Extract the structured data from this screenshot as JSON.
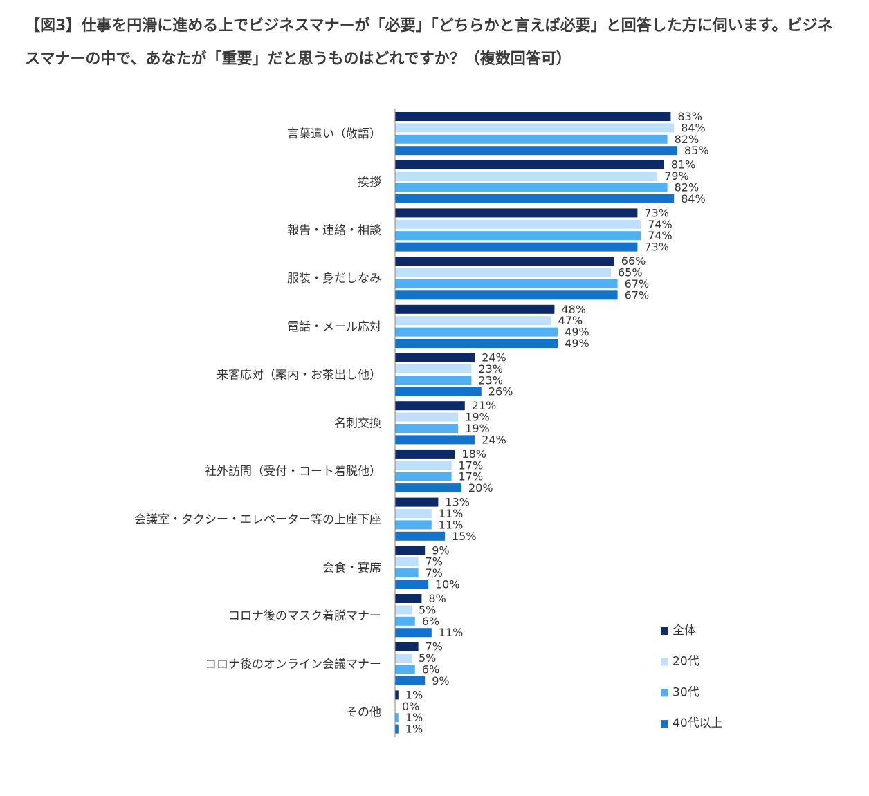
{
  "title": "【図3】仕事を円滑に進める上でビジネスマナーが「必要」「どちらかと言えば必要」と回答した方に伺います。ビジネスマナーの中で、あなたが「重要」だと思うものはどれですか？（複数回答可）",
  "chart_data": {
    "type": "bar",
    "orientation": "horizontal",
    "unit": "%",
    "xlim": [
      0,
      100
    ],
    "legend_position": "bottom-right",
    "categories": [
      "言葉遣い（敬語）",
      "挨拶",
      "報告・連絡・相談",
      "服装・身だしなみ",
      "電話・メール応対",
      "来客応対（案内・お茶出し他）",
      "名刺交換",
      "社外訪問（受付・コート着脱他）",
      "会議室・タクシー・エレベーター等の上座下座",
      "会食・宴席",
      "コロナ後のマスク着脱マナー",
      "コロナ後のオンライン会議マナー",
      "その他"
    ],
    "series": [
      {
        "name": "全体",
        "color": "#0d2a66",
        "values": [
          83,
          81,
          73,
          66,
          48,
          24,
          21,
          18,
          13,
          9,
          8,
          7,
          1
        ]
      },
      {
        "name": "20代",
        "color": "#bfe0fa",
        "values": [
          84,
          79,
          74,
          65,
          47,
          23,
          19,
          17,
          11,
          7,
          5,
          5,
          0
        ]
      },
      {
        "name": "30代",
        "color": "#51b0f2",
        "values": [
          82,
          82,
          74,
          67,
          49,
          23,
          19,
          17,
          11,
          7,
          6,
          6,
          1
        ]
      },
      {
        "name": "40代以上",
        "color": "#1372c9",
        "values": [
          85,
          84,
          73,
          67,
          49,
          26,
          24,
          20,
          15,
          10,
          11,
          9,
          1
        ]
      }
    ]
  }
}
